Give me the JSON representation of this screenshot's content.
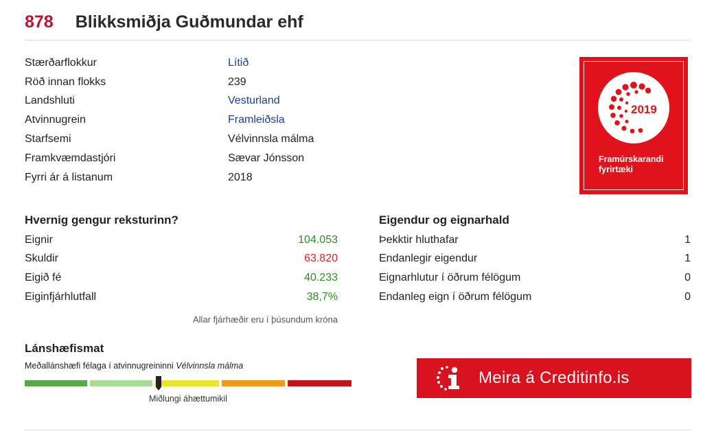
{
  "header": {
    "rank": "878",
    "company": "Blikksmiðja Guðmundar ehf"
  },
  "info": [
    {
      "label": "Stærðarflokkur",
      "value": "Lítið",
      "link": true
    },
    {
      "label": "Röð innan flokks",
      "value": "239",
      "link": false
    },
    {
      "label": "Landshluti",
      "value": "Vesturland",
      "link": true
    },
    {
      "label": "Atvinnugrein",
      "value": "Framleiðsla",
      "link": true
    },
    {
      "label": "Starfsemi",
      "value": "Vélvinnsla málma",
      "link": false
    },
    {
      "label": "Framkvæmdastjóri",
      "value": "Sævar Jónsson",
      "link": false
    },
    {
      "label": "Fyrri ár á listanum",
      "value": "2018",
      "link": false
    }
  ],
  "badge": {
    "year": "2019",
    "line1": "Framúrskarandi",
    "line2": "fyrirtæki",
    "color": "#e0121b"
  },
  "finance": {
    "title": "Hvernig gengur reksturinn?",
    "rows": [
      {
        "label": "Eignir",
        "value": "104.053",
        "tone": "pos"
      },
      {
        "label": "Skuldir",
        "value": "63.820",
        "tone": "neg"
      },
      {
        "label": "Eigið fé",
        "value": "40.233",
        "tone": "pos"
      },
      {
        "label": "Eiginfjárhlutfall",
        "value": "38,7%",
        "tone": "pos"
      }
    ],
    "note": "Allar fjárhæðir eru í þúsundum króna"
  },
  "ownership": {
    "title": "Eigendur og eignarhald",
    "rows": [
      {
        "label": "Þekktir hluthafar",
        "value": "1"
      },
      {
        "label": "Endanlegir eigendur",
        "value": "1"
      },
      {
        "label": "Eignarhlutur í öðrum félögum",
        "value": "0"
      },
      {
        "label": "Endanleg eign í öðrum félögum",
        "value": "0"
      }
    ]
  },
  "credit": {
    "title": "Lánshæfismat",
    "subtitle_prefix": "Meðallánshæfi félaga í atvinnugreininni",
    "subtitle_industry": "Vélvinnsla málma",
    "scale_colors": [
      "#5aa84a",
      "#a8dc96",
      "#ece330",
      "#f0991a",
      "#c4141b"
    ],
    "marker_level": 0.41,
    "level_label": "Miðlungi áhættumikil"
  },
  "cta": {
    "label": "Meira á Creditinfo.is",
    "icon": "creditinfo-i-icon",
    "color": "#d8121f"
  }
}
